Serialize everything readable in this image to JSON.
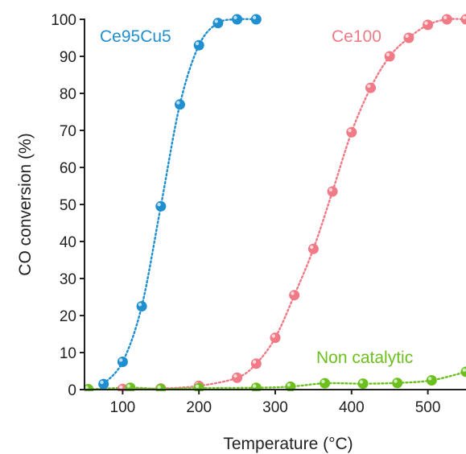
{
  "chart_data": {
    "type": "scatter",
    "xlabel": "Temperature (°C)",
    "ylabel": "CO conversion (%)",
    "xlim": [
      50,
      550
    ],
    "ylim": [
      0,
      100
    ],
    "x_ticks": [
      100,
      200,
      300,
      400,
      500
    ],
    "y_ticks": [
      0,
      10,
      20,
      30,
      40,
      50,
      60,
      70,
      80,
      90,
      100
    ],
    "grid": false,
    "fit_lines": "dotted",
    "series": [
      {
        "name": "Ce95Cu5",
        "color": "#1f8fd0",
        "points": [
          {
            "x": 75,
            "y": 1.5
          },
          {
            "x": 100,
            "y": 7.5
          },
          {
            "x": 125,
            "y": 22.5
          },
          {
            "x": 150,
            "y": 49.5
          },
          {
            "x": 175,
            "y": 77
          },
          {
            "x": 200,
            "y": 93
          },
          {
            "x": 225,
            "y": 99
          },
          {
            "x": 250,
            "y": 100
          },
          {
            "x": 275,
            "y": 100
          }
        ]
      },
      {
        "name": "Ce100",
        "color": "#f07a85",
        "points": [
          {
            "x": 100,
            "y": 0.2
          },
          {
            "x": 150,
            "y": 0.3
          },
          {
            "x": 200,
            "y": 1
          },
          {
            "x": 250,
            "y": 3.2
          },
          {
            "x": 275,
            "y": 7
          },
          {
            "x": 300,
            "y": 14
          },
          {
            "x": 325,
            "y": 25.5
          },
          {
            "x": 350,
            "y": 38
          },
          {
            "x": 375,
            "y": 53.5
          },
          {
            "x": 400,
            "y": 69.5
          },
          {
            "x": 425,
            "y": 81.5
          },
          {
            "x": 450,
            "y": 90
          },
          {
            "x": 475,
            "y": 95
          },
          {
            "x": 500,
            "y": 98.5
          },
          {
            "x": 525,
            "y": 100
          },
          {
            "x": 550,
            "y": 100
          }
        ]
      },
      {
        "name": "Non catalytic",
        "color": "#6cc01e",
        "points": [
          {
            "x": 55,
            "y": 0.1
          },
          {
            "x": 110,
            "y": 0.5
          },
          {
            "x": 150,
            "y": 0.2
          },
          {
            "x": 200,
            "y": 0.4
          },
          {
            "x": 275,
            "y": 0.5
          },
          {
            "x": 320,
            "y": 0.8
          },
          {
            "x": 365,
            "y": 1.7
          },
          {
            "x": 415,
            "y": 1.6
          },
          {
            "x": 460,
            "y": 1.8
          },
          {
            "x": 505,
            "y": 2.5
          },
          {
            "x": 550,
            "y": 4.8
          }
        ]
      }
    ]
  }
}
